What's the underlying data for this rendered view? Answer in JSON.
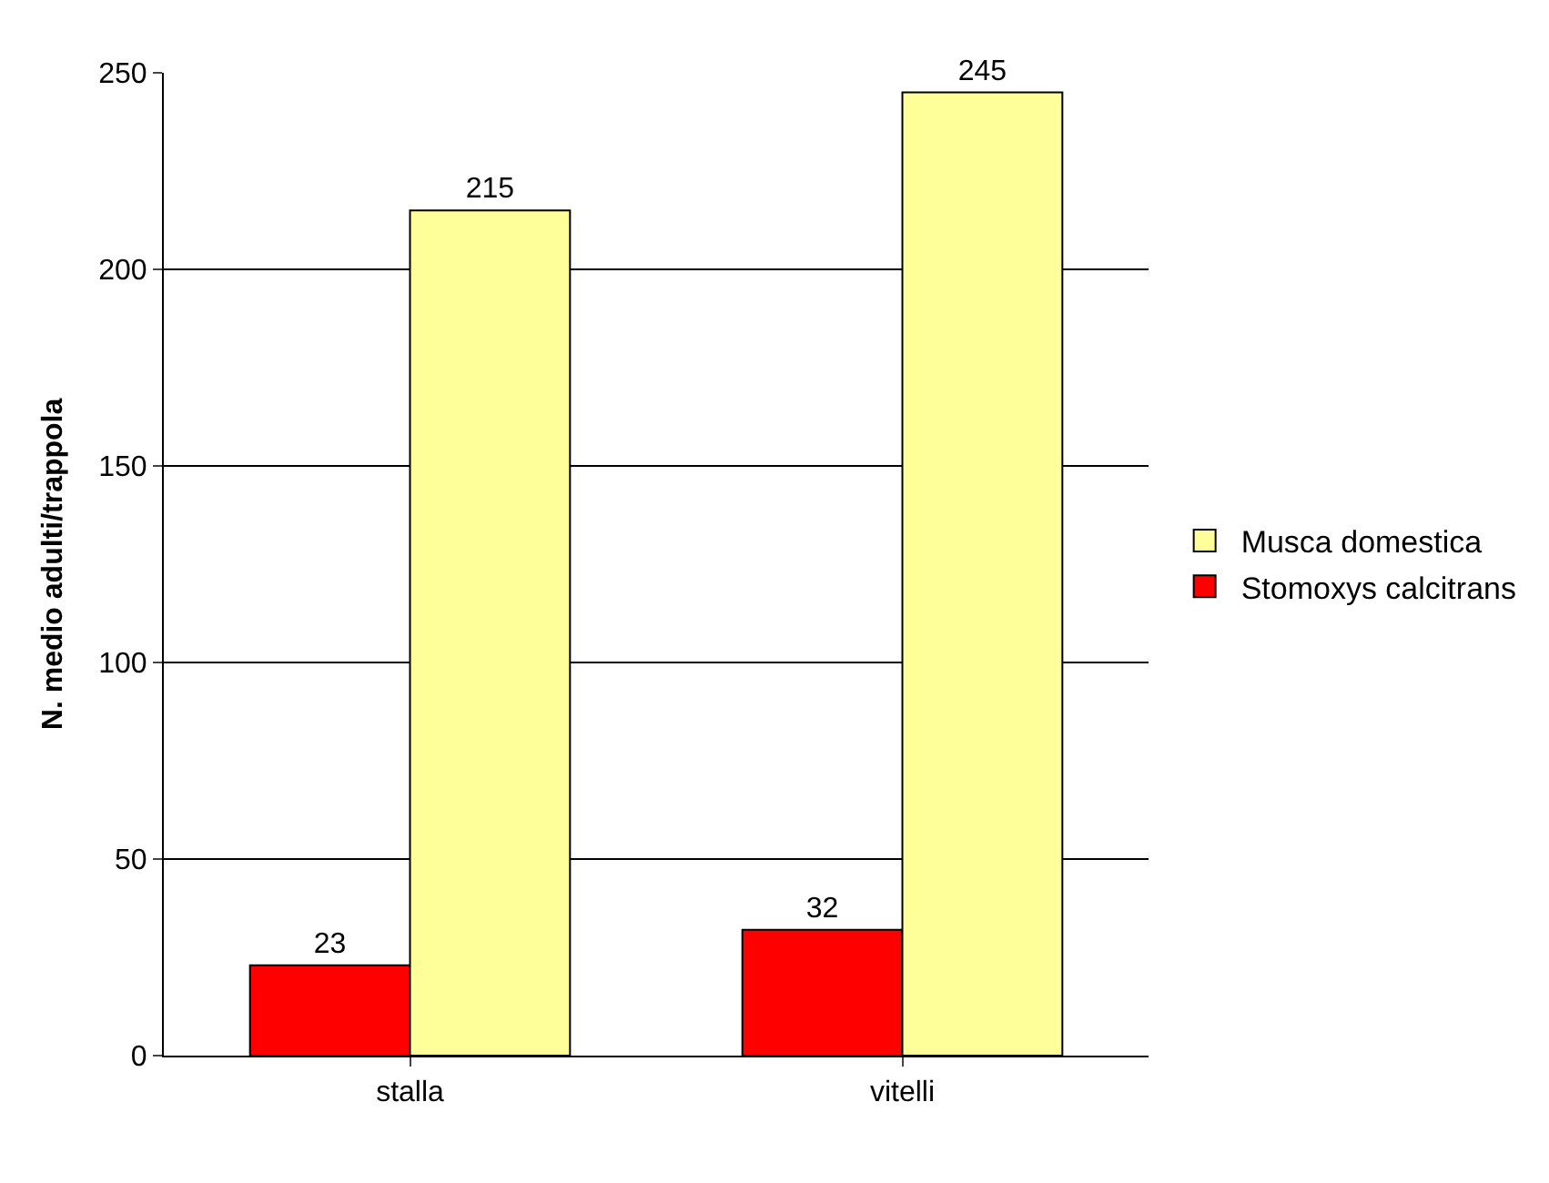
{
  "chart_data": {
    "type": "bar",
    "ylabel": "N. medio adulti/trappola",
    "categories": [
      "stalla",
      "vitelli"
    ],
    "series": [
      {
        "name": "Stomoxys calcitrans",
        "color": "#ff0000",
        "values": [
          23,
          32
        ]
      },
      {
        "name": "Musca domestica",
        "color": "#ffff99",
        "values": [
          215,
          245
        ]
      }
    ],
    "ylim": [
      0,
      250
    ],
    "yticks": [
      0,
      50,
      100,
      150,
      200,
      250
    ],
    "grid": "y",
    "legend": "right",
    "data_labels": true
  }
}
